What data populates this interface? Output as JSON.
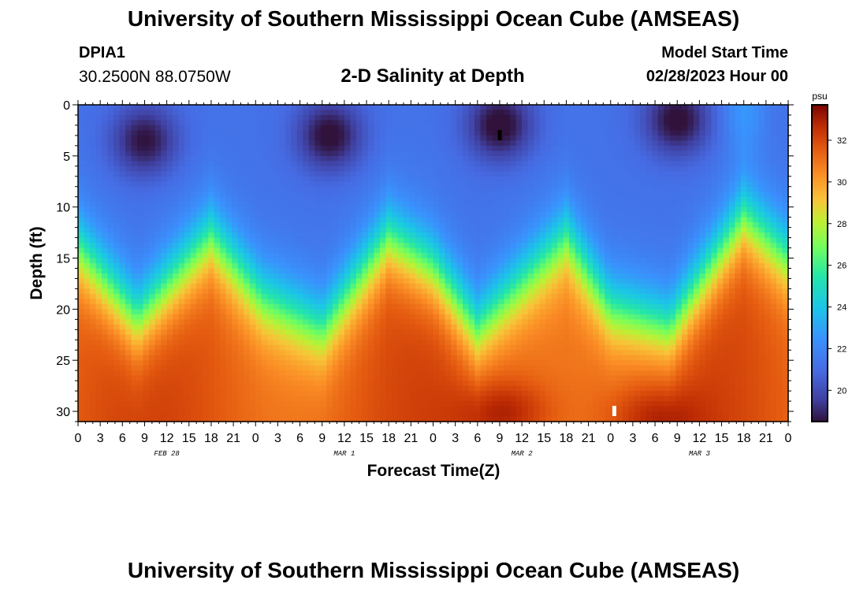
{
  "header": {
    "title": "University of Southern Mississippi Ocean Cube (AMSEAS)",
    "station_id": "DPIA1",
    "station_coords": "30.2500N  88.0750W",
    "plot_title": "2-D Salinity at Depth",
    "model_label": "Model Start Time",
    "model_time": "02/28/2023 Hour 00"
  },
  "footer": {
    "title": "University of Southern Mississippi Ocean Cube (AMSEAS)"
  },
  "chart_data": {
    "type": "heatmap",
    "title": "2-D Salinity at Depth",
    "xlabel": "Forecast Time(Z)",
    "ylabel": "Depth (ft)",
    "x_hours_range": [
      0,
      96
    ],
    "x_tick_hours": [
      0,
      3,
      6,
      9,
      12,
      15,
      18,
      21,
      24,
      27,
      30,
      33,
      36,
      39,
      42,
      45,
      48,
      51,
      54,
      57,
      60,
      63,
      66,
      69,
      72,
      75,
      78,
      81,
      84,
      87,
      90,
      93,
      96
    ],
    "x_tick_labels": [
      "0",
      "3",
      "6",
      "9",
      "12",
      "15",
      "18",
      "21",
      "0",
      "3",
      "6",
      "9",
      "12",
      "15",
      "18",
      "21",
      "0",
      "3",
      "6",
      "9",
      "12",
      "15",
      "18",
      "21",
      "0",
      "3",
      "6",
      "9",
      "12",
      "15",
      "18",
      "21",
      "0"
    ],
    "day_labels": [
      {
        "label": "FEB 28",
        "hour": 12
      },
      {
        "label": "MAR 1",
        "hour": 36
      },
      {
        "label": "MAR 2",
        "hour": 60
      },
      {
        "label": "MAR 3",
        "hour": 84
      }
    ],
    "y_range": [
      0,
      31
    ],
    "y_ticks": [
      0,
      5,
      10,
      15,
      20,
      25,
      30
    ],
    "y_tick_labels": [
      "0",
      "5",
      "10",
      "15",
      "20",
      "25",
      "30"
    ],
    "colorbar": {
      "unit": "psu",
      "range": [
        18.5,
        33.7
      ],
      "ticks": [
        20,
        22,
        24,
        26,
        28,
        30,
        32
      ],
      "tick_labels": [
        "20",
        "22",
        "24",
        "26",
        "28",
        "30",
        "32"
      ]
    },
    "halocline_depth_ft": {
      "hours": [
        0,
        8,
        18,
        25,
        33,
        42,
        48,
        54,
        66,
        72,
        80,
        90,
        96
      ],
      "values": [
        14,
        21,
        13,
        19,
        22,
        13,
        16,
        22,
        13,
        20,
        22,
        11,
        15
      ]
    },
    "low_salinity_cores": [
      {
        "hour": 9,
        "depth_ft": 3.5,
        "min_psu": 18.8
      },
      {
        "hour": 34,
        "depth_ft": 3,
        "min_psu": 18.6
      },
      {
        "hour": 57,
        "depth_ft": 2,
        "min_psu": 18.5
      },
      {
        "hour": 81,
        "depth_ft": 1.5,
        "min_psu": 18.6
      }
    ],
    "high_salinity_cores": [
      {
        "hour": 58,
        "depth_ft": 30,
        "max_psu": 33.7
      },
      {
        "hour": 78,
        "depth_ft": 30.5,
        "max_psu": 33.4
      }
    ],
    "markers": [
      {
        "hour": 57,
        "depth_ft": 3,
        "color": "#000000"
      },
      {
        "hour": 72.5,
        "depth_ft": 30,
        "color": "#ffffff"
      }
    ]
  }
}
